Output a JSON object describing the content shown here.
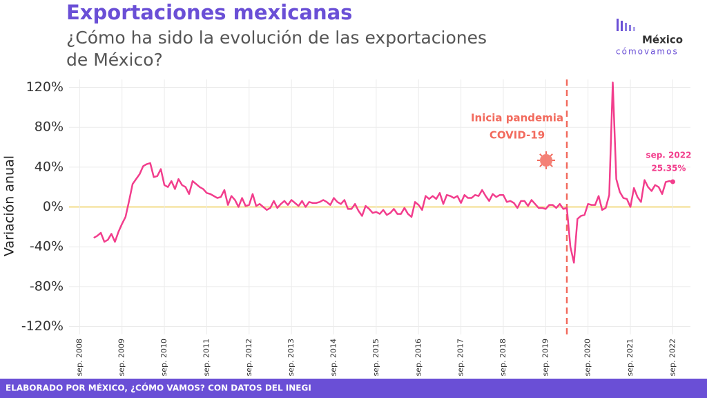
{
  "chart_data": {
    "type": "line",
    "title": "Exportaciones mexicanas",
    "subtitle_lines": [
      "¿Cómo ha sido la evolución de las exportaciones",
      "de México?"
    ],
    "y_label": "Variación anual",
    "logo": {
      "top": "México",
      "bottom": "cómovamos"
    },
    "footer": "ELABORADO POR MÉXICO, ¿CÓMO VAMOS? CON DATOS DEL INEGI",
    "grid": true,
    "xlim": [
      "2008-06",
      "2023-02"
    ],
    "ylim": [
      -128,
      128
    ],
    "yticks": [
      {
        "value": -120,
        "label": "-120%"
      },
      {
        "value": -80,
        "label": "-80%"
      },
      {
        "value": -40,
        "label": "-40%"
      },
      {
        "value": 0,
        "label": "0%"
      },
      {
        "value": 40,
        "label": "40%"
      },
      {
        "value": 80,
        "label": "80%"
      },
      {
        "value": 120,
        "label": "120%"
      }
    ],
    "xticks": [
      {
        "value": "2008-09",
        "label": "sep. 2008"
      },
      {
        "value": "2009-09",
        "label": "sep. 2009"
      },
      {
        "value": "2010-09",
        "label": "sep. 2010"
      },
      {
        "value": "2011-09",
        "label": "sep. 2011"
      },
      {
        "value": "2012-09",
        "label": "sep. 2012"
      },
      {
        "value": "2013-09",
        "label": "sep. 2013"
      },
      {
        "value": "2014-09",
        "label": "sep. 2014"
      },
      {
        "value": "2015-09",
        "label": "sep. 2015"
      },
      {
        "value": "2016-09",
        "label": "sep. 2016"
      },
      {
        "value": "2017-09",
        "label": "sep. 2017"
      },
      {
        "value": "2018-09",
        "label": "sep. 2018"
      },
      {
        "value": "2019-09",
        "label": "sep. 2019"
      },
      {
        "value": "2020-09",
        "label": "sep. 2020"
      },
      {
        "value": "2021-09",
        "label": "sep. 2021"
      },
      {
        "value": "2022-09",
        "label": "sep. 2022"
      }
    ],
    "pandemic": {
      "x": "2020-03",
      "lines": [
        "Inicia pandemia",
        "COVID-19"
      ],
      "color": "#f26b5e"
    },
    "end_label": {
      "date": "sep. 2022",
      "label": "25.35%"
    },
    "x": [
      "2009-01",
      "2009-02",
      "2009-03",
      "2009-04",
      "2009-05",
      "2009-06",
      "2009-07",
      "2009-08",
      "2009-09",
      "2009-10",
      "2009-11",
      "2009-12",
      "2010-01",
      "2010-02",
      "2010-03",
      "2010-04",
      "2010-05",
      "2010-06",
      "2010-07",
      "2010-08",
      "2010-09",
      "2010-10",
      "2010-11",
      "2010-12",
      "2011-01",
      "2011-02",
      "2011-03",
      "2011-04",
      "2011-05",
      "2011-06",
      "2011-07",
      "2011-08",
      "2011-09",
      "2011-10",
      "2011-11",
      "2011-12",
      "2012-01",
      "2012-02",
      "2012-03",
      "2012-04",
      "2012-05",
      "2012-06",
      "2012-07",
      "2012-08",
      "2012-09",
      "2012-10",
      "2012-11",
      "2012-12",
      "2013-01",
      "2013-02",
      "2013-03",
      "2013-04",
      "2013-05",
      "2013-06",
      "2013-07",
      "2013-08",
      "2013-09",
      "2013-10",
      "2013-11",
      "2013-12",
      "2014-01",
      "2014-02",
      "2014-03",
      "2014-04",
      "2014-05",
      "2014-06",
      "2014-07",
      "2014-08",
      "2014-09",
      "2014-10",
      "2014-11",
      "2014-12",
      "2015-01",
      "2015-02",
      "2015-03",
      "2015-04",
      "2015-05",
      "2015-06",
      "2015-07",
      "2015-08",
      "2015-09",
      "2015-10",
      "2015-11",
      "2015-12",
      "2016-01",
      "2016-02",
      "2016-03",
      "2016-04",
      "2016-05",
      "2016-06",
      "2016-07",
      "2016-08",
      "2016-09",
      "2016-10",
      "2016-11",
      "2016-12",
      "2017-01",
      "2017-02",
      "2017-03",
      "2017-04",
      "2017-05",
      "2017-06",
      "2017-07",
      "2017-08",
      "2017-09",
      "2017-10",
      "2017-11",
      "2017-12",
      "2018-01",
      "2018-02",
      "2018-03",
      "2018-04",
      "2018-05",
      "2018-06",
      "2018-07",
      "2018-08",
      "2018-09",
      "2018-10",
      "2018-11",
      "2018-12",
      "2019-01",
      "2019-02",
      "2019-03",
      "2019-04",
      "2019-05",
      "2019-06",
      "2019-07",
      "2019-08",
      "2019-09",
      "2019-10",
      "2019-11",
      "2019-12",
      "2020-01",
      "2020-02",
      "2020-03",
      "2020-04",
      "2020-05",
      "2020-06",
      "2020-07",
      "2020-08",
      "2020-09",
      "2020-10",
      "2020-11",
      "2020-12",
      "2021-01",
      "2021-02",
      "2021-03",
      "2021-04",
      "2021-05",
      "2021-06",
      "2021-07",
      "2021-08",
      "2021-09",
      "2021-10",
      "2021-11",
      "2021-12",
      "2022-01",
      "2022-02",
      "2022-03",
      "2022-04",
      "2022-05",
      "2022-06",
      "2022-07",
      "2022-08",
      "2022-09"
    ],
    "series": [
      {
        "name": "Variación anual",
        "color": "#f23d8c",
        "values": [
          -31,
          -29,
          -26,
          -35,
          -33,
          -27,
          -35,
          -25,
          -17,
          -10,
          6,
          23,
          28,
          33,
          41,
          43,
          44,
          30,
          31,
          38,
          22,
          20,
          26,
          18,
          28,
          22,
          20,
          13,
          26,
          23,
          20,
          18,
          14,
          13,
          11,
          9,
          10,
          17,
          2,
          11,
          7,
          0,
          9,
          1,
          2,
          13,
          1,
          3,
          0,
          -3,
          -1,
          6,
          -1,
          3,
          6,
          2,
          7,
          4,
          1,
          6,
          0,
          5,
          4,
          4,
          5,
          7,
          5,
          2,
          9,
          5,
          3,
          7,
          -2,
          -2,
          3,
          -4,
          -9,
          1,
          -2,
          -6,
          -5,
          -7,
          -3,
          -8,
          -6,
          -2,
          -7,
          -7,
          -1,
          -7,
          -10,
          5,
          2,
          -3,
          11,
          8,
          11,
          8,
          14,
          3,
          12,
          11,
          9,
          11,
          4,
          12,
          9,
          9,
          12,
          11,
          17,
          11,
          6,
          13,
          10,
          12,
          12,
          5,
          6,
          4,
          -1,
          6,
          6,
          1,
          7,
          3,
          -1,
          -1,
          -2,
          2,
          2,
          -1,
          3,
          -2,
          -1,
          -40,
          -56,
          -12,
          -9,
          -8,
          3,
          2,
          2,
          11,
          -3,
          -1,
          12,
          125,
          28,
          15,
          9,
          8,
          0,
          19,
          10,
          5,
          27,
          20,
          16,
          22,
          20,
          13,
          25,
          26,
          25.35
        ]
      }
    ]
  }
}
